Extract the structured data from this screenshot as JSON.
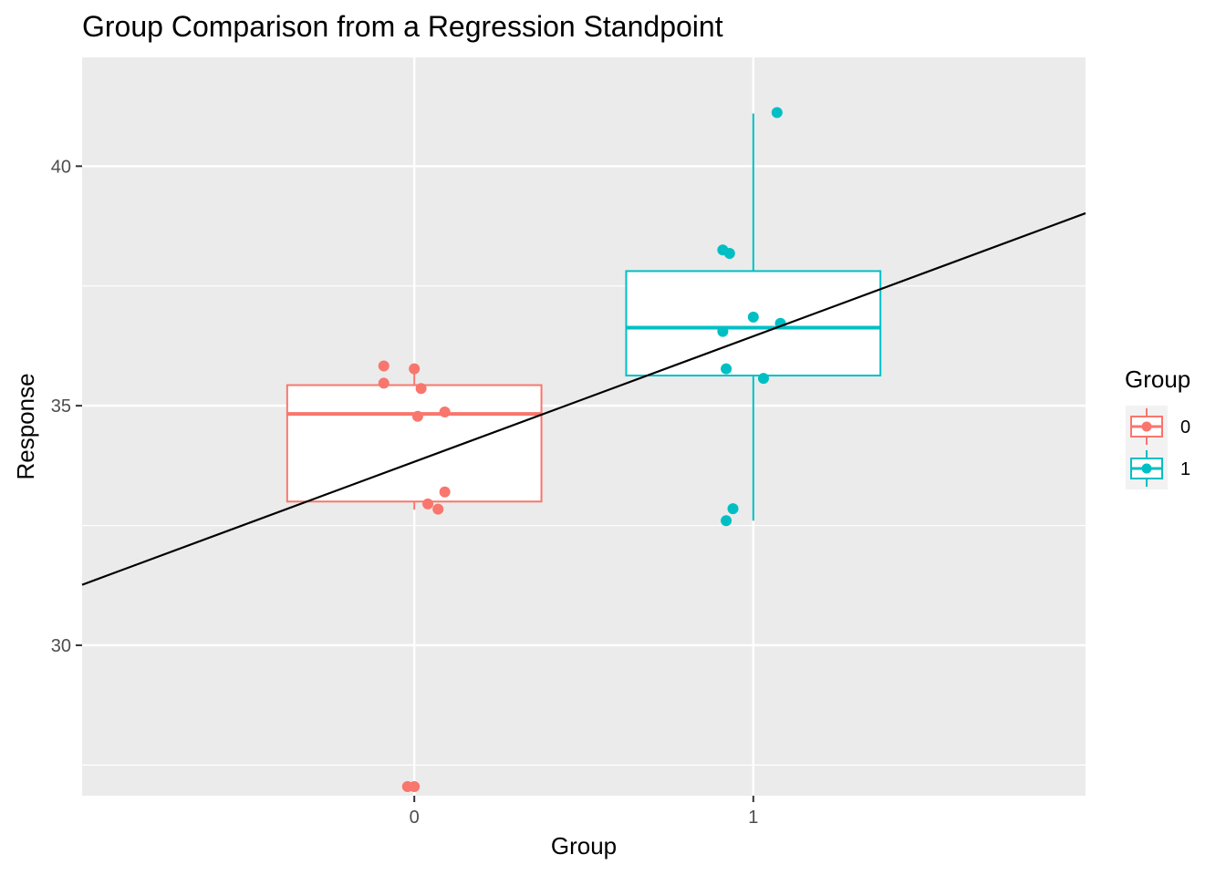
{
  "chart_data": {
    "type": "boxplot",
    "title": "Group Comparison from a Regression Standpoint",
    "xlabel": "Group",
    "ylabel": "Response",
    "categories": [
      "0",
      "1"
    ],
    "x_range": [
      -0.98,
      1.98
    ],
    "ylim": [
      26.86,
      42.27
    ],
    "y_ticks": [
      30,
      35,
      40
    ],
    "y_minor_ticks": [
      27.5,
      32.5,
      37.5
    ],
    "grid": true,
    "background": "#ebebeb",
    "legend": {
      "title": "Group",
      "position": "right",
      "entries": [
        {
          "label": "0",
          "color": "#f8766d"
        },
        {
          "label": "1",
          "color": "#00bfc4"
        }
      ]
    },
    "boxes": [
      {
        "group": "0",
        "x": 0,
        "color": "#f8766d",
        "q1": 33.0,
        "median": 34.83,
        "q3": 35.43,
        "whisker_low": 32.83,
        "whisker_high": 35.83
      },
      {
        "group": "1",
        "x": 1,
        "color": "#00bfc4",
        "q1": 35.63,
        "median": 36.63,
        "q3": 37.81,
        "whisker_low": 32.6,
        "whisker_high": 41.1
      }
    ],
    "points": [
      {
        "group": "0",
        "x": -0.09,
        "y": 35.83
      },
      {
        "group": "0",
        "x": 0.0,
        "y": 35.77
      },
      {
        "group": "0",
        "x": -0.09,
        "y": 35.47
      },
      {
        "group": "0",
        "x": 0.02,
        "y": 35.36
      },
      {
        "group": "0",
        "x": 0.09,
        "y": 34.87
      },
      {
        "group": "0",
        "x": 0.01,
        "y": 34.78
      },
      {
        "group": "0",
        "x": 0.09,
        "y": 33.2
      },
      {
        "group": "0",
        "x": 0.04,
        "y": 32.95
      },
      {
        "group": "0",
        "x": 0.07,
        "y": 32.84
      },
      {
        "group": "0",
        "x": -0.02,
        "y": 27.05
      },
      {
        "group": "0",
        "x": 0.0,
        "y": 27.05
      },
      {
        "group": "1",
        "x": 1.07,
        "y": 41.12
      },
      {
        "group": "1",
        "x": 0.91,
        "y": 38.25
      },
      {
        "group": "1",
        "x": 0.93,
        "y": 38.18
      },
      {
        "group": "1",
        "x": 1.0,
        "y": 36.85
      },
      {
        "group": "1",
        "x": 1.08,
        "y": 36.72
      },
      {
        "group": "1",
        "x": 0.91,
        "y": 36.55
      },
      {
        "group": "1",
        "x": 0.92,
        "y": 35.77
      },
      {
        "group": "1",
        "x": 1.03,
        "y": 35.57
      },
      {
        "group": "1",
        "x": 0.94,
        "y": 32.85
      },
      {
        "group": "1",
        "x": 0.92,
        "y": 32.6
      }
    ],
    "regression_line": {
      "intercept": 33.83,
      "slope": 2.62,
      "color": "#000000"
    }
  }
}
